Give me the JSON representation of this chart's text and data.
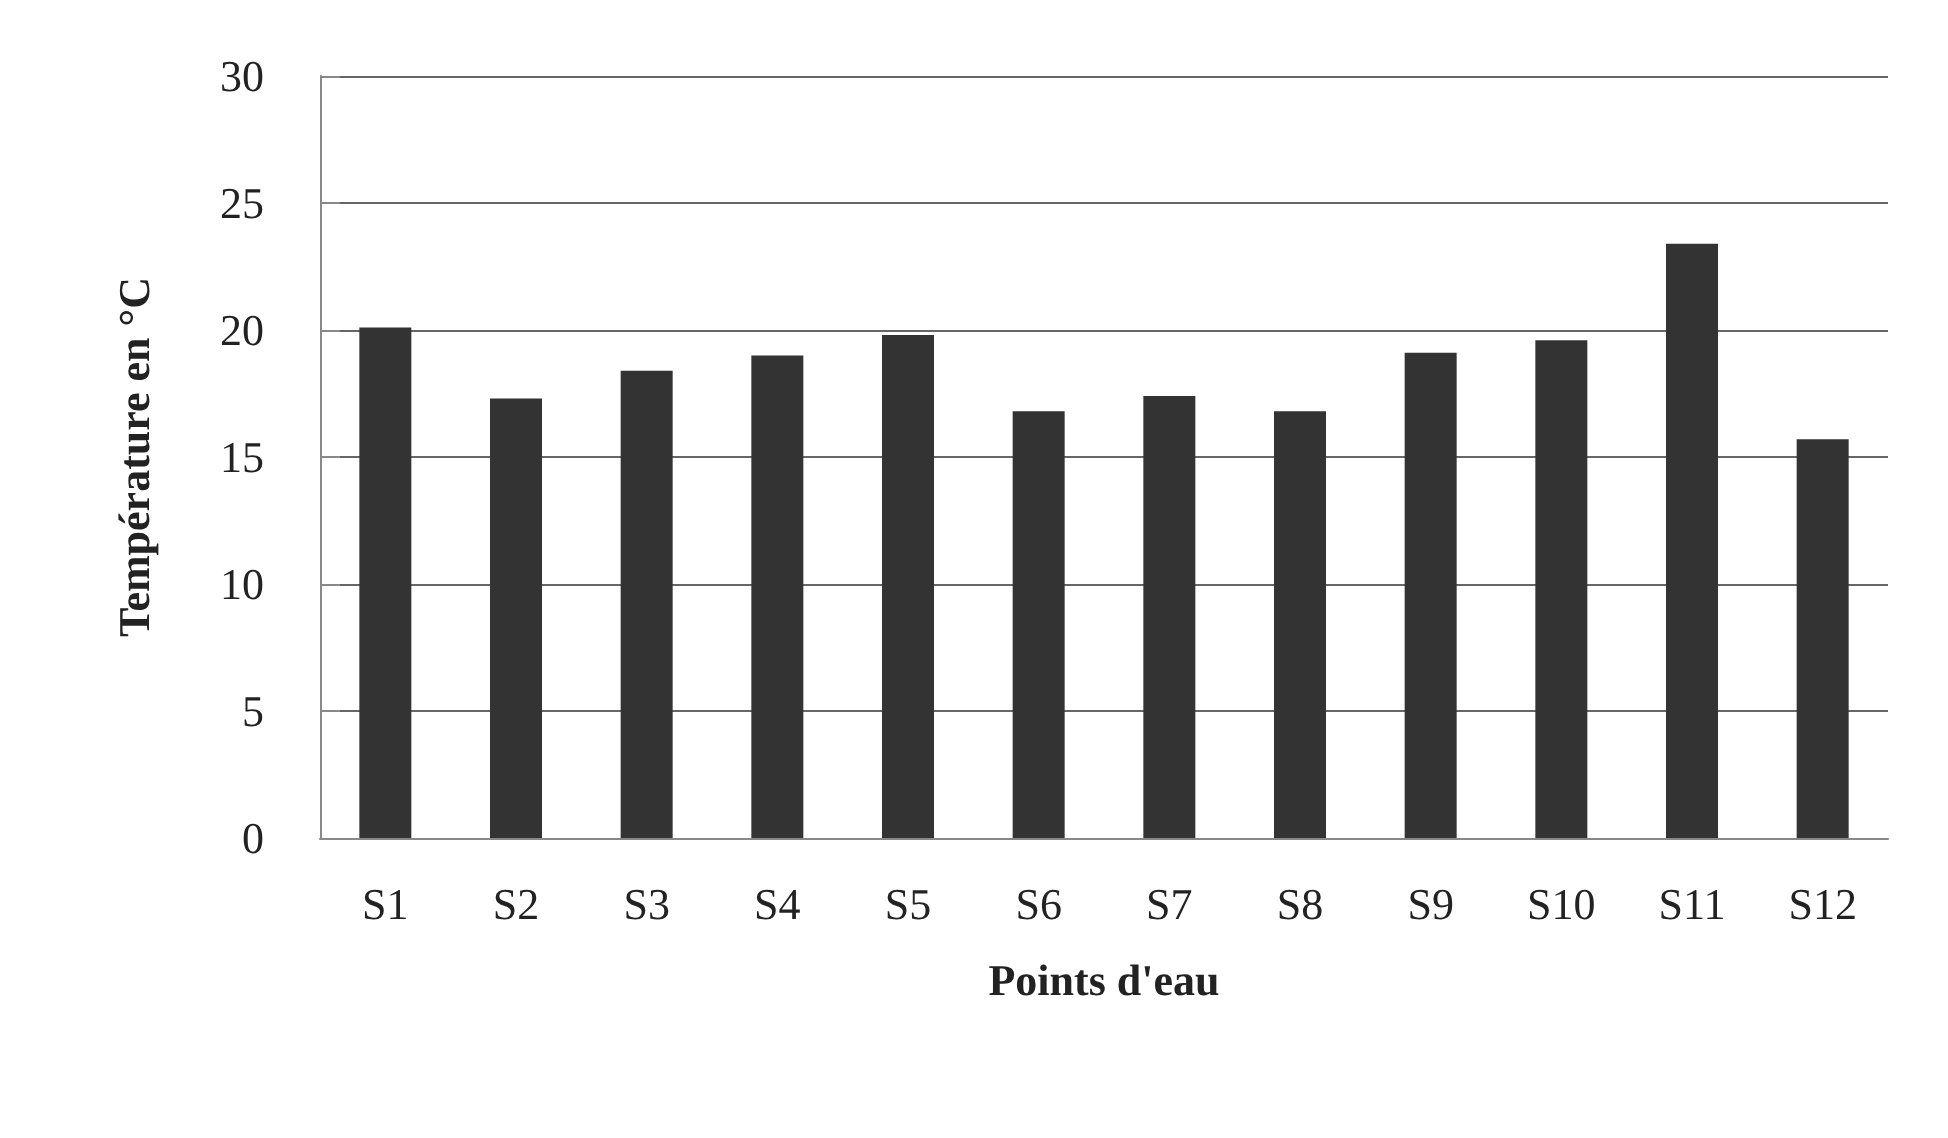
{
  "chart_data": {
    "type": "bar",
    "xlabel": "Points d'eau",
    "ylabel": "Température en °C",
    "categories": [
      "S1",
      "S2",
      "S3",
      "S4",
      "S5",
      "S6",
      "S7",
      "S8",
      "S9",
      "S10",
      "S11",
      "S12"
    ],
    "values": [
      20.1,
      17.3,
      18.4,
      19.0,
      19.8,
      16.8,
      17.4,
      16.8,
      19.1,
      19.6,
      23.4,
      15.7
    ],
    "color": "#333333",
    "ylim": [
      0,
      30
    ],
    "yticks": [
      0,
      5,
      10,
      15,
      20,
      25,
      30
    ],
    "grid": "y"
  }
}
